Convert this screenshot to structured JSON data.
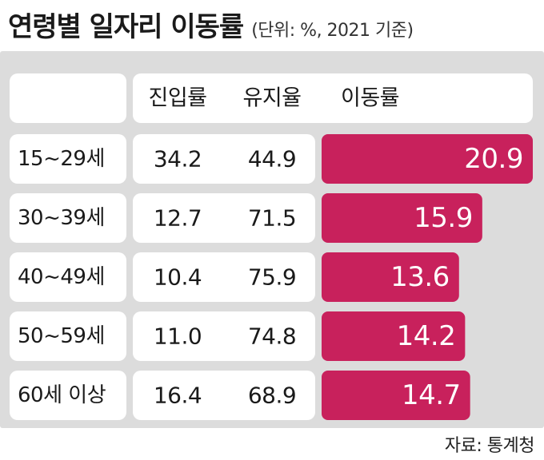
{
  "title": "연령별 일자리 이동률",
  "subtitle": "(단위: %, 2021 기준)",
  "source": "자료: 통계청",
  "colors": {
    "bar": "#c8215c",
    "panel": "#dcdcdc",
    "row_bg": "#ffffff",
    "bar_text": "#ffffff"
  },
  "chart_data": {
    "type": "table",
    "columns": [
      "진입률",
      "유지율",
      "이동률"
    ],
    "rows": [
      {
        "label": "15~29세",
        "values": [
          34.2,
          44.9,
          20.9
        ]
      },
      {
        "label": "30~39세",
        "values": [
          12.7,
          71.5,
          15.9
        ]
      },
      {
        "label": "40~49세",
        "values": [
          10.4,
          75.9,
          13.6
        ]
      },
      {
        "label": "50~59세",
        "values": [
          11.0,
          74.8,
          14.2
        ]
      },
      {
        "label": "60세 이상",
        "values": [
          16.4,
          68.9,
          14.7
        ]
      }
    ],
    "bar_column": "이동률",
    "xlim": [
      0,
      20.9
    ]
  }
}
